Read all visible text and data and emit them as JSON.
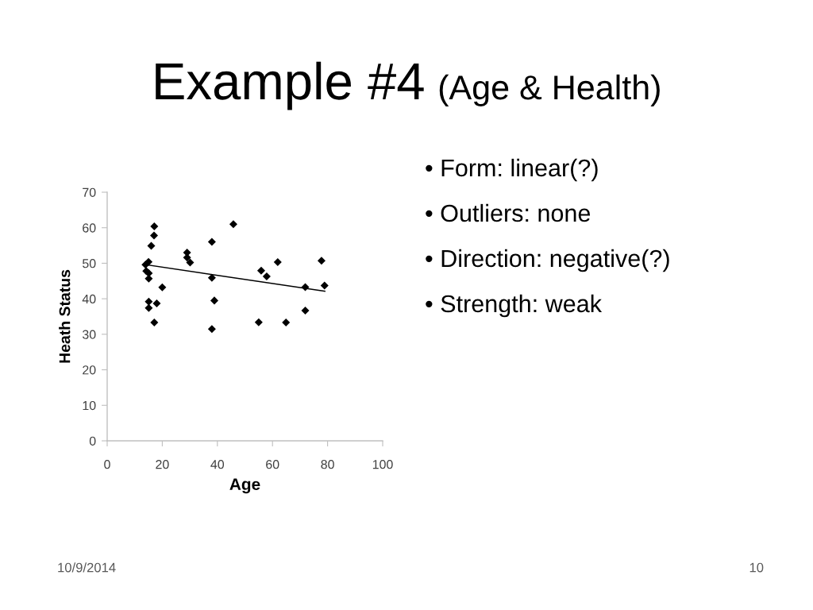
{
  "chart_data": {
    "type": "scatter",
    "title": "Example #4",
    "subtitle": "(Age & Health)",
    "xlabel": "Age",
    "ylabel": "Heath Status",
    "series": [
      {
        "color": "#000000",
        "x": [
          17.1,
          17.0,
          16.0,
          15.0,
          13.9,
          14.2,
          15.1,
          15.1,
          20.0,
          15.1,
          15.1,
          18.0,
          17.1,
          29.0,
          29.0,
          30.1,
          38.0,
          38.0,
          38.9,
          38.0,
          45.8,
          55.9,
          57.9,
          61.9,
          77.8,
          78.9,
          71.9,
          71.9,
          55.0,
          64.9
        ],
        "values": [
          60.4,
          57.8,
          54.9,
          50.4,
          49.6,
          47.8,
          47.2,
          45.7,
          43.2,
          39.2,
          37.4,
          38.7,
          33.3,
          53.0,
          51.6,
          50.2,
          56.0,
          45.9,
          39.5,
          31.5,
          61.0,
          47.9,
          46.3,
          50.3,
          50.7,
          43.7,
          43.3,
          36.7,
          33.4,
          33.3
        ]
      },
      {
        "type": "line",
        "color": "#000000",
        "marker": "none",
        "line_style": "solid",
        "x": [
          13.9,
          79.0
        ],
        "values": [
          49.6,
          42.1
        ]
      }
    ],
    "marker": "diamond",
    "xlim": [
      0,
      100
    ],
    "xticks": [
      0,
      20,
      40,
      60,
      80,
      100
    ],
    "ylim": [
      0,
      70
    ],
    "yticks": [
      0,
      10,
      20,
      30,
      40,
      50,
      60,
      70
    ],
    "grid": false,
    "annotations": [
      "• Form: linear(?)",
      "• Outliers: none",
      "• Direction: negative(?)",
      "• Strength: weak",
      "10/9/2014",
      "10"
    ]
  }
}
